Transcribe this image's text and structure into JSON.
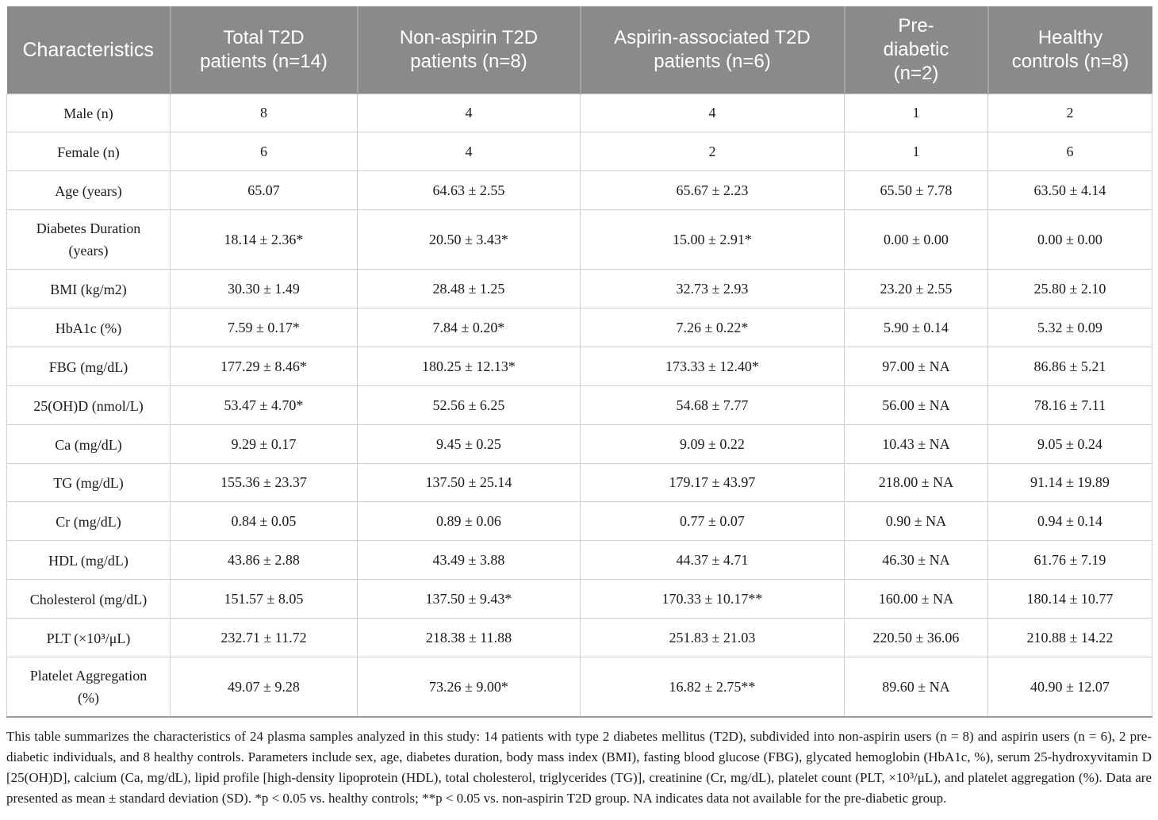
{
  "table": {
    "header": {
      "columns": [
        "Characteristics",
        "Total T2D patients (n=14)",
        "Non-aspirin T2D patients (n=8)",
        "Aspirin-associated T2D patients (n=6)",
        "Pre-diabetic (n=2)",
        "Healthy controls (n=8)"
      ]
    },
    "rows": [
      {
        "label": "Male (n)",
        "values": [
          "8",
          "4",
          "4",
          "1",
          "2"
        ]
      },
      {
        "label": "Female (n)",
        "values": [
          "6",
          "4",
          "2",
          "1",
          "6"
        ]
      },
      {
        "label": "Age (years)",
        "values": [
          "65.07",
          "64.63 ± 2.55",
          "65.67 ± 2.23",
          "65.50 ± 7.78",
          "63.50 ± 4.14"
        ]
      },
      {
        "label": "Diabetes Duration (years)",
        "values": [
          "18.14 ± 2.36*",
          "20.50 ± 3.43*",
          "15.00 ± 2.91*",
          "0.00 ± 0.00",
          "0.00 ± 0.00"
        ]
      },
      {
        "label": "BMI (kg/m2)",
        "values": [
          "30.30 ± 1.49",
          "28.48 ± 1.25",
          "32.73 ± 2.93",
          "23.20 ± 2.55",
          "25.80 ± 2.10"
        ]
      },
      {
        "label": "HbA1c (%)",
        "values": [
          "7.59 ± 0.17*",
          "7.84 ± 0.20*",
          "7.26 ± 0.22*",
          "5.90 ± 0.14",
          "5.32 ± 0.09"
        ]
      },
      {
        "label": "FBG (mg/dL)",
        "values": [
          "177.29 ± 8.46*",
          "180.25 ± 12.13*",
          "173.33 ± 12.40*",
          "97.00 ± NA",
          "86.86 ± 5.21"
        ]
      },
      {
        "label": "25(OH)D (nmol/L)",
        "values": [
          "53.47 ± 4.70*",
          "52.56 ± 6.25",
          "54.68 ± 7.77",
          "56.00 ± NA",
          "78.16 ± 7.11"
        ]
      },
      {
        "label": "Ca (mg/dL)",
        "values": [
          "9.29 ± 0.17",
          "9.45 ± 0.25",
          "9.09 ± 0.22",
          "10.43 ± NA",
          "9.05 ± 0.24"
        ]
      },
      {
        "label": "TG (mg/dL)",
        "values": [
          "155.36 ± 23.37",
          "137.50 ± 25.14",
          "179.17 ± 43.97",
          "218.00 ± NA",
          "91.14 ± 19.89"
        ]
      },
      {
        "label": "Cr (mg/dL)",
        "values": [
          "0.84 ± 0.05",
          "0.89 ± 0.06",
          "0.77 ± 0.07",
          "0.90 ± NA",
          "0.94 ± 0.14"
        ]
      },
      {
        "label": "HDL (mg/dL)",
        "values": [
          "43.86 ± 2.88",
          "43.49 ± 3.88",
          "44.37 ± 4.71",
          "46.30 ± NA",
          "61.76 ± 7.19"
        ]
      },
      {
        "label": "Cholesterol (mg/dL)",
        "values": [
          "151.57 ± 8.05",
          "137.50 ± 9.43*",
          "170.33 ± 10.17**",
          "160.00 ± NA",
          "180.14 ± 10.77"
        ]
      },
      {
        "label": "PLT (×10³/μL)",
        "values": [
          "232.71 ± 11.72",
          "218.38 ± 11.88",
          "251.83 ± 21.03",
          "220.50 ± 36.06",
          "210.88 ± 14.22"
        ]
      },
      {
        "label": "Platelet Aggregation (%)",
        "values": [
          "49.07 ± 9.28",
          "73.26 ± 9.00*",
          "16.82 ± 2.75**",
          "89.60 ± NA",
          "40.90 ± 12.07"
        ]
      }
    ]
  },
  "footnote": "This table summarizes the characteristics of 24 plasma samples analyzed in this study: 14 patients with type 2 diabetes mellitus (T2D), subdivided into non-aspirin users (n = 8) and aspirin users (n = 6), 2 pre-diabetic individuals, and 8 healthy controls. Parameters include sex, age, diabetes duration, body mass index (BMI), fasting blood glucose (FBG), glycated hemoglobin (HbA1c, %), serum 25-hydroxyvitamin D [25(OH)D], calcium (Ca, mg/dL), lipid profile [high-density lipoprotein (HDL), total cholesterol, triglycerides (TG)], creatinine (Cr, mg/dL), platelet count (PLT, ×10³/μL), and platelet aggregation (%). Data are presented as mean ± standard deviation (SD). *p < 0.05 vs. healthy controls; **p < 0.05 vs. non-aspirin T2D group. NA indicates data not available for the pre-diabetic group.",
  "colors": {
    "header_bg": "#8a8a8a",
    "header_text": "#ffffff",
    "header_divider": "#a4a4a4",
    "row_border": "#cfcfcf",
    "table_bottom": "#9c9c9c",
    "body_text": "#1b1b1b"
  }
}
